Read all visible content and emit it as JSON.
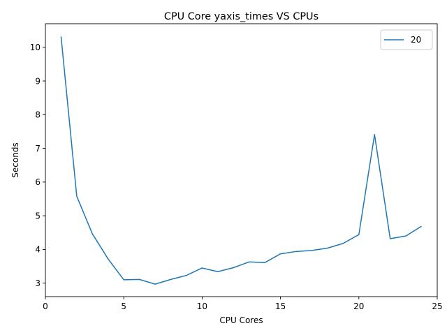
{
  "chart_data": {
    "type": "line",
    "title": "CPU Core yaxis_times VS CPUs",
    "xlabel": "CPU Cores",
    "ylabel": "Seconds",
    "xlim": [
      0,
      25
    ],
    "ylim": [
      2.6,
      10.7
    ],
    "xticks": [
      0,
      5,
      10,
      15,
      20,
      25
    ],
    "yticks": [
      3,
      4,
      5,
      6,
      7,
      8,
      9,
      10
    ],
    "grid": false,
    "legend_position": "top-right",
    "series": [
      {
        "name": "20",
        "color": "#1f77b4",
        "x": [
          1,
          2,
          3,
          4,
          5,
          6,
          7,
          8,
          9,
          10,
          11,
          12,
          13,
          14,
          15,
          16,
          17,
          18,
          19,
          20,
          21,
          22,
          23,
          24
        ],
        "y": [
          10.32,
          5.58,
          4.46,
          3.72,
          3.1,
          3.11,
          2.97,
          3.11,
          3.23,
          3.45,
          3.34,
          3.46,
          3.63,
          3.61,
          3.87,
          3.94,
          3.97,
          4.04,
          4.18,
          4.44,
          7.41,
          4.32,
          4.4,
          4.69
        ]
      }
    ]
  }
}
